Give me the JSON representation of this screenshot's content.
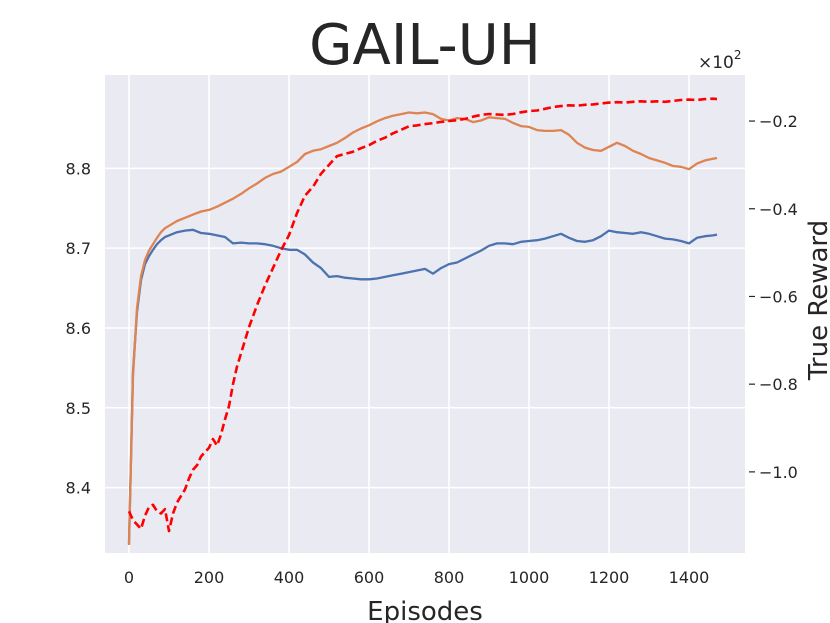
{
  "chart_data": {
    "type": "line",
    "title": "GAIL-UH",
    "xlabel": "Episodes",
    "ylabel_left": "",
    "ylabel_right": "True Reward",
    "right_axis_multiplier": "×10",
    "right_axis_multiplier_exp": "2",
    "xlim": [
      -60,
      1540
    ],
    "ylim_left": [
      8.318,
      8.917
    ],
    "ylim_right_scaled": [
      -1.185,
      -0.095
    ],
    "x_ticks": [
      0,
      200,
      400,
      600,
      800,
      1000,
      1200,
      1400
    ],
    "y_ticks_left": [
      8.4,
      8.5,
      8.6,
      8.7,
      8.8
    ],
    "y_ticks_right": [
      -1.0,
      -0.8,
      -0.6,
      -0.4,
      -0.2
    ],
    "grid": true,
    "background": "#eaeaf2",
    "series": [
      {
        "axis": "left",
        "color": "#4c72b0",
        "style": "solid",
        "x": [
          0,
          10,
          20,
          30,
          40,
          50,
          60,
          70,
          80,
          90,
          100,
          120,
          140,
          160,
          180,
          200,
          220,
          240,
          260,
          280,
          300,
          320,
          340,
          360,
          380,
          400,
          420,
          440,
          460,
          480,
          500,
          520,
          540,
          560,
          580,
          600,
          620,
          640,
          660,
          680,
          700,
          720,
          740,
          760,
          780,
          800,
          820,
          840,
          860,
          880,
          900,
          920,
          940,
          960,
          980,
          1000,
          1020,
          1040,
          1060,
          1080,
          1100,
          1120,
          1140,
          1160,
          1180,
          1200,
          1220,
          1240,
          1260,
          1280,
          1300,
          1320,
          1340,
          1360,
          1380,
          1400,
          1420,
          1440,
          1460,
          1470
        ],
        "y": [
          8.33,
          8.545,
          8.62,
          8.66,
          8.68,
          8.69,
          8.698,
          8.705,
          8.71,
          8.714,
          8.716,
          8.72,
          8.722,
          8.723,
          8.719,
          8.718,
          8.716,
          8.714,
          8.706,
          8.707,
          8.706,
          8.706,
          8.705,
          8.703,
          8.7,
          8.698,
          8.698,
          8.692,
          8.682,
          8.675,
          8.664,
          8.665,
          8.663,
          8.662,
          8.661,
          8.661,
          8.662,
          8.664,
          8.666,
          8.668,
          8.67,
          8.672,
          8.674,
          8.668,
          8.675,
          8.68,
          8.682,
          8.687,
          8.692,
          8.697,
          8.703,
          8.706,
          8.706,
          8.705,
          8.708,
          8.709,
          8.71,
          8.712,
          8.715,
          8.718,
          8.713,
          8.709,
          8.708,
          8.71,
          8.715,
          8.722,
          8.72,
          8.719,
          8.718,
          8.72,
          8.718,
          8.715,
          8.712,
          8.711,
          8.709,
          8.706,
          8.713,
          8.715,
          8.716,
          8.717
        ]
      },
      {
        "axis": "left",
        "color": "#dd8452",
        "style": "solid",
        "x": [
          0,
          10,
          20,
          30,
          40,
          50,
          60,
          70,
          80,
          90,
          100,
          120,
          140,
          160,
          180,
          200,
          220,
          240,
          260,
          280,
          300,
          320,
          340,
          360,
          380,
          400,
          420,
          440,
          460,
          480,
          500,
          520,
          540,
          560,
          580,
          600,
          620,
          640,
          660,
          680,
          700,
          720,
          740,
          760,
          780,
          800,
          820,
          840,
          860,
          880,
          900,
          920,
          940,
          960,
          980,
          1000,
          1020,
          1040,
          1060,
          1080,
          1100,
          1120,
          1140,
          1160,
          1180,
          1200,
          1220,
          1240,
          1260,
          1280,
          1300,
          1320,
          1340,
          1360,
          1380,
          1400,
          1420,
          1440,
          1460,
          1470
        ],
        "y": [
          8.328,
          8.54,
          8.625,
          8.665,
          8.685,
          8.697,
          8.705,
          8.713,
          8.72,
          8.725,
          8.728,
          8.734,
          8.738,
          8.742,
          8.746,
          8.748,
          8.752,
          8.757,
          8.762,
          8.768,
          8.775,
          8.781,
          8.788,
          8.793,
          8.796,
          8.802,
          8.808,
          8.818,
          8.822,
          8.824,
          8.828,
          8.832,
          8.838,
          8.845,
          8.85,
          8.854,
          8.859,
          8.863,
          8.866,
          8.868,
          8.87,
          8.869,
          8.87,
          8.868,
          8.862,
          8.86,
          8.863,
          8.862,
          8.858,
          8.86,
          8.864,
          8.863,
          8.862,
          8.857,
          8.853,
          8.852,
          8.848,
          8.847,
          8.847,
          8.848,
          8.842,
          8.832,
          8.826,
          8.823,
          8.822,
          8.827,
          8.832,
          8.828,
          8.822,
          8.818,
          8.813,
          8.81,
          8.807,
          8.803,
          8.802,
          8.799,
          8.806,
          8.81,
          8.812,
          8.813
        ]
      },
      {
        "axis": "right",
        "color": "#ff0000",
        "style": "dashed",
        "x": [
          0,
          10,
          20,
          30,
          40,
          50,
          60,
          70,
          80,
          90,
          100,
          110,
          120,
          130,
          140,
          150,
          160,
          170,
          180,
          190,
          200,
          210,
          220,
          230,
          240,
          250,
          260,
          270,
          280,
          290,
          300,
          320,
          340,
          360,
          380,
          400,
          420,
          440,
          460,
          480,
          500,
          520,
          540,
          560,
          580,
          600,
          620,
          640,
          660,
          680,
          700,
          720,
          740,
          760,
          780,
          800,
          820,
          840,
          860,
          880,
          900,
          920,
          940,
          960,
          980,
          1000,
          1020,
          1040,
          1060,
          1080,
          1100,
          1120,
          1140,
          1160,
          1180,
          1200,
          1220,
          1240,
          1260,
          1280,
          1300,
          1320,
          1340,
          1360,
          1380,
          1400,
          1420,
          1440,
          1460,
          1470
        ],
        "y": [
          -1.09,
          -1.11,
          -1.12,
          -1.13,
          -1.1,
          -1.08,
          -1.075,
          -1.09,
          -1.095,
          -1.085,
          -1.135,
          -1.095,
          -1.07,
          -1.055,
          -1.04,
          -1.015,
          -0.995,
          -0.985,
          -0.965,
          -0.955,
          -0.945,
          -0.925,
          -0.94,
          -0.915,
          -0.88,
          -0.85,
          -0.8,
          -0.76,
          -0.73,
          -0.7,
          -0.67,
          -0.62,
          -0.575,
          -0.535,
          -0.495,
          -0.46,
          -0.41,
          -0.37,
          -0.35,
          -0.32,
          -0.3,
          -0.28,
          -0.275,
          -0.27,
          -0.262,
          -0.255,
          -0.245,
          -0.238,
          -0.228,
          -0.22,
          -0.212,
          -0.21,
          -0.207,
          -0.205,
          -0.202,
          -0.2,
          -0.198,
          -0.195,
          -0.19,
          -0.186,
          -0.184,
          -0.185,
          -0.186,
          -0.184,
          -0.18,
          -0.177,
          -0.176,
          -0.172,
          -0.168,
          -0.166,
          -0.164,
          -0.165,
          -0.163,
          -0.162,
          -0.16,
          -0.158,
          -0.157,
          -0.158,
          -0.156,
          -0.155,
          -0.156,
          -0.155,
          -0.156,
          -0.154,
          -0.152,
          -0.151,
          -0.152,
          -0.15,
          -0.149,
          -0.15
        ]
      }
    ]
  }
}
